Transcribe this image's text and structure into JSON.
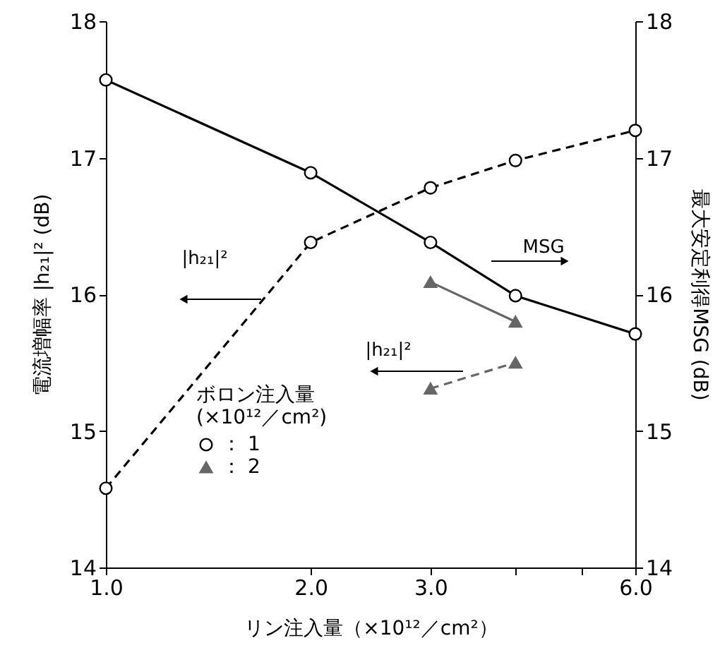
{
  "chart_data": {
    "type": "line",
    "xlabel": "リン注入量（×10¹²／cm²）",
    "ylabel": "電流増幅率  |h₂₁|²  (dB)",
    "y2label": "最大安定利得MSG (dB)",
    "legend_title": "ボロン注入量\n(×10¹²／cm²)",
    "legend": "bottom left",
    "log": "x",
    "xlim": [
      1,
      6
    ],
    "xticks": [
      {
        "value": 1,
        "label": "1.0"
      },
      {
        "value": 2,
        "label": "2.0"
      },
      {
        "value": 3,
        "label": "3.0"
      },
      {
        "value": 4,
        "label": null
      },
      {
        "value": 5,
        "label": null
      },
      {
        "value": 6,
        "label": "6.0"
      }
    ],
    "ylim": [
      14,
      18
    ],
    "yticks": [
      14,
      15,
      16,
      17,
      18
    ],
    "y2lim": [
      14,
      18
    ],
    "y2ticks": [
      14,
      15,
      16,
      17,
      18
    ],
    "series": [
      {
        "name": "： 1",
        "color": "#000000",
        "marker": "circle",
        "line_style": "solid",
        "axis": "y2",
        "x": [
          1,
          2,
          3,
          4,
          6
        ],
        "values": [
          17.57,
          16.89,
          16.38,
          15.99,
          15.71
        ]
      },
      {
        "color": "#000000",
        "marker": "circle",
        "line_style": "dashed",
        "x": [
          1,
          2,
          3,
          4,
          6
        ],
        "values": [
          14.58,
          16.38,
          16.78,
          16.98,
          17.2
        ]
      },
      {
        "name": "： 2",
        "color": "#666666",
        "marker": "triangle",
        "line_style": "solid",
        "axis": "y2",
        "x": [
          3,
          4
        ],
        "values": [
          16.09,
          15.8
        ]
      },
      {
        "color": "#666666",
        "marker": "triangle",
        "line_style": "dashed",
        "x": [
          3,
          4
        ],
        "values": [
          15.31,
          15.5
        ]
      }
    ],
    "annotations": [
      "|h₂₁|²",
      "MSG",
      "|h₂₁|²"
    ]
  }
}
